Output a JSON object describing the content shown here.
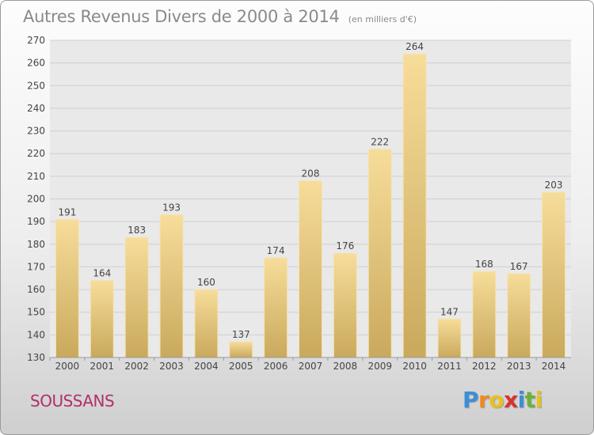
{
  "title": "Autres Revenus Divers de 2000 à 2014",
  "subtitle": "(en milliers d'€)",
  "location": "SOUSSANS",
  "brand": {
    "letters": [
      "P",
      "r",
      "o",
      "x",
      "i",
      "t",
      "i"
    ],
    "colors": [
      "#3a8fd6",
      "#f08a1c",
      "#e8c21a",
      "#d9322e",
      "#3a8fd6",
      "#6ab23a",
      "#e8c21a"
    ]
  },
  "colors": {
    "bar_top": "#f7dd9a",
    "bar_bottom": "#c9a95c",
    "plot_background": "#e9e9e9",
    "grid": "#cfcfcf",
    "text": "#444444"
  },
  "chart_data": {
    "type": "bar",
    "categories": [
      "2000",
      "2001",
      "2002",
      "2003",
      "2004",
      "2005",
      "2006",
      "2007",
      "2008",
      "2009",
      "2010",
      "2011",
      "2012",
      "2013",
      "2014"
    ],
    "values": [
      191,
      164,
      183,
      193,
      160,
      137,
      174,
      208,
      176,
      222,
      264,
      147,
      168,
      167,
      203
    ],
    "ylim": [
      130,
      270
    ],
    "yticks": [
      130,
      140,
      150,
      160,
      170,
      180,
      190,
      200,
      210,
      220,
      230,
      240,
      250,
      260,
      270
    ],
    "grid": true,
    "data_labels": true
  }
}
